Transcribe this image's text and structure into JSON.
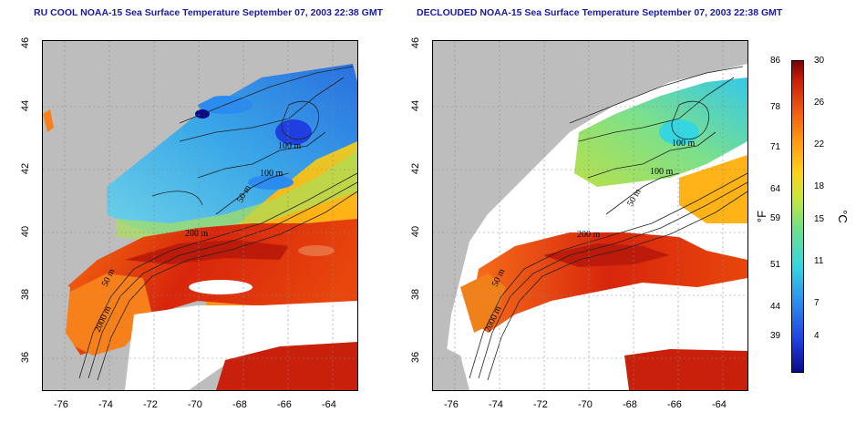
{
  "titles": {
    "left": "RU COOL NOAA-15 Sea Surface Temperature September 07, 2003 22:38 GMT",
    "right": "DECLOUDED NOAA-15 Sea Surface Temperature September 07, 2003 22:38 GMT"
  },
  "axes": {
    "x_ticks": [
      "-76",
      "-74",
      "-72",
      "-70",
      "-68",
      "-66",
      "-64"
    ],
    "y_ticks": [
      "46",
      "44",
      "42",
      "40",
      "38",
      "36"
    ]
  },
  "contour_labels": [
    "100 m",
    "100 m",
    "50 m",
    "200 m",
    "50 m",
    "2000 m"
  ],
  "colorbar": {
    "fahrenheit_unit": "°F",
    "celsius_unit": "°C",
    "fahrenheit_ticks": [
      "86",
      "78",
      "71",
      "64",
      "59",
      "51",
      "44",
      "39"
    ],
    "celsius_ticks": [
      "30",
      "26",
      "22",
      "18",
      "15",
      "11",
      "7",
      "4"
    ]
  },
  "colors": {
    "title": "#1a1aa0",
    "land": "#bdbdbd",
    "cloud": "#ffffff",
    "cold": "#0a0a8c",
    "warm": "#c81e0a"
  }
}
